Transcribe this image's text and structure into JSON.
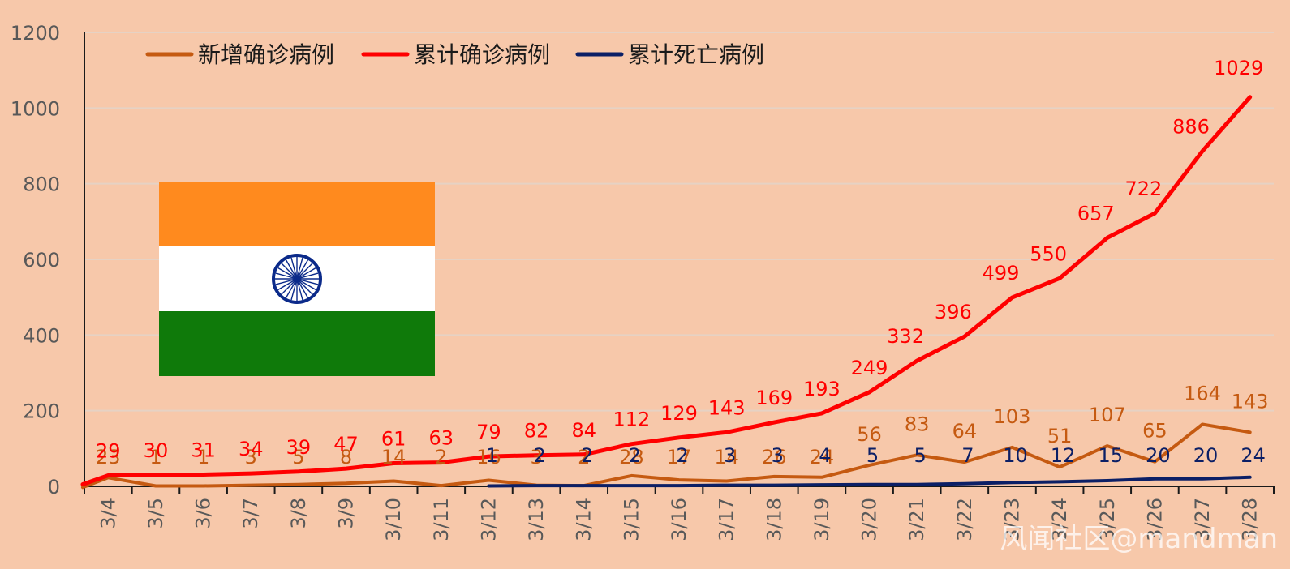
{
  "chart_data": {
    "type": "line",
    "title": "",
    "xlabel": "",
    "ylabel": "",
    "ylim": [
      0,
      1200
    ],
    "yticks": [
      0,
      200,
      400,
      600,
      800,
      1000,
      1200
    ],
    "ytick_labels": [
      "0",
      "200",
      "400",
      "600",
      "800",
      "1000",
      "1200"
    ],
    "grid": true,
    "legend_position": "top-left",
    "categories": [
      "3/4",
      "3/5",
      "3/6",
      "3/7",
      "3/8",
      "3/9",
      "3/10",
      "3/11",
      "3/12",
      "3/13",
      "3/14",
      "3/15",
      "3/16",
      "3/17",
      "3/18",
      "3/19",
      "3/20",
      "3/21",
      "3/22",
      "3/23",
      "3/24",
      "3/25",
      "3/26",
      "3/27",
      "3/28"
    ],
    "series": [
      {
        "name": "新增确诊病例",
        "color": "#c55a11",
        "values": [
          23,
          1,
          1,
          3,
          5,
          8,
          14,
          2,
          16,
          3,
          2,
          28,
          17,
          14,
          26,
          24,
          56,
          83,
          64,
          103,
          51,
          107,
          65,
          164,
          143
        ]
      },
      {
        "name": "累计确诊病例",
        "color": "#ff0000",
        "values": [
          29,
          30,
          31,
          34,
          39,
          47,
          61,
          63,
          79,
          82,
          84,
          112,
          129,
          143,
          169,
          193,
          249,
          332,
          396,
          499,
          550,
          657,
          722,
          886,
          1029
        ]
      },
      {
        "name": "累计死亡病例",
        "color": "#0b1f66",
        "values": [
          null,
          null,
          null,
          null,
          null,
          null,
          null,
          null,
          1,
          2,
          2,
          2,
          2,
          3,
          3,
          4,
          5,
          5,
          7,
          10,
          12,
          15,
          20,
          20,
          24
        ]
      }
    ],
    "flag_icon": "india-flag-icon",
    "watermark": "风闻社区@mandman"
  }
}
